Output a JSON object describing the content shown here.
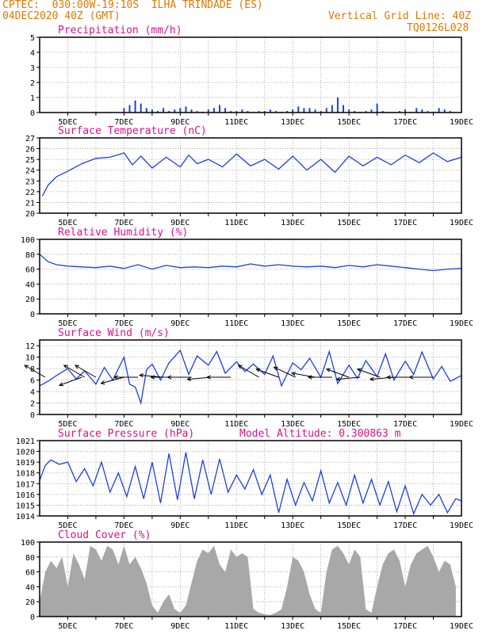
{
  "header": {
    "line1_left": "CPTEC:  030:00W-19:10S  ILHA TRINDADE (ES)",
    "line2_left": "04DEC2020 40Z (GMT)",
    "line1_right": "Vertical Grid Line: 40Z",
    "line2_right": "TQ0126L028"
  },
  "colors": {
    "header": "#e07800",
    "title": "#e0108a",
    "line": "#1f3fe0",
    "fill": "#a8a8a8"
  },
  "chart_data": [
    {
      "type": "bar",
      "title": "Precipitation (mm/h)",
      "x_tick_labels": [
        "5DEC",
        "7DEC",
        "9DEC",
        "11DEC",
        "13DEC",
        "15DEC",
        "17DEC",
        "19DEC"
      ],
      "y_ticks": [
        0,
        1,
        2,
        3,
        4,
        5
      ],
      "ylim": [
        0,
        5
      ],
      "grid": true,
      "x": [
        5,
        5.5,
        6,
        6.5,
        7,
        7.2,
        7.4,
        7.6,
        7.8,
        8,
        8.2,
        8.4,
        8.6,
        8.8,
        9,
        9.2,
        9.4,
        9.6,
        9.8,
        10,
        10.2,
        10.4,
        10.6,
        10.8,
        11,
        11.2,
        11.4,
        11.6,
        11.8,
        12,
        12.2,
        12.4,
        12.6,
        12.8,
        13,
        13.2,
        13.4,
        13.6,
        13.8,
        14,
        14.2,
        14.4,
        14.6,
        14.8,
        15,
        15.2,
        15.4,
        15.6,
        15.8,
        16,
        16.2,
        16.4,
        16.6,
        16.8,
        17,
        17.2,
        17.4,
        17.6,
        17.8,
        18,
        18.2,
        18.4,
        18.6
      ],
      "values": [
        0,
        0,
        0.05,
        0.05,
        0.3,
        0.5,
        0.8,
        0.6,
        0.3,
        0.2,
        0.1,
        0.3,
        0.1,
        0.2,
        0.3,
        0.4,
        0.2,
        0.1,
        0.05,
        0.2,
        0.3,
        0.5,
        0.3,
        0.1,
        0.1,
        0.2,
        0.1,
        0.05,
        0.1,
        0.1,
        0.2,
        0.1,
        0.05,
        0.1,
        0.2,
        0.4,
        0.3,
        0.3,
        0.2,
        0.1,
        0.3,
        0.5,
        1.0,
        0.5,
        0.2,
        0.1,
        0.05,
        0.1,
        0.2,
        0.6,
        0.1,
        0.05,
        0.05,
        0.1,
        0.2,
        0.05,
        0.3,
        0.2,
        0.1,
        0.05,
        0.3,
        0.2,
        0.1
      ]
    },
    {
      "type": "line",
      "title": "Surface Temperature (nC)",
      "x_tick_labels": [
        "5DEC",
        "7DEC",
        "9DEC",
        "11DEC",
        "13DEC",
        "15DEC",
        "17DEC",
        "19DEC"
      ],
      "y_ticks": [
        20,
        21,
        22,
        23,
        24,
        25,
        26,
        27
      ],
      "ylim": [
        20,
        27
      ],
      "grid": true,
      "x": [
        4.1,
        4.3,
        4.6,
        5,
        5.5,
        6,
        6.5,
        7,
        7.3,
        7.6,
        8,
        8.5,
        9,
        9.3,
        9.6,
        10,
        10.5,
        11,
        11.5,
        12,
        12.5,
        13,
        13.5,
        14,
        14.5,
        15,
        15.5,
        16,
        16.5,
        17,
        17.5,
        18,
        18.5,
        19
      ],
      "values": [
        21.6,
        22.6,
        23.4,
        23.9,
        24.6,
        25.1,
        25.2,
        25.6,
        24.5,
        25.3,
        24.2,
        25.2,
        24.3,
        25.4,
        24.6,
        25.0,
        24.3,
        25.5,
        24.4,
        25.0,
        24.1,
        25.3,
        24.0,
        25.0,
        23.8,
        25.3,
        24.4,
        25.2,
        24.5,
        25.4,
        24.7,
        25.6,
        24.8,
        25.2
      ]
    },
    {
      "type": "line",
      "title": "Relative Humidity (%)",
      "x_tick_labels": [
        "5DEC",
        "7DEC",
        "9DEC",
        "11DEC",
        "13DEC",
        "15DEC",
        "17DEC",
        "19DEC"
      ],
      "y_ticks": [
        0,
        20,
        40,
        60,
        80,
        100
      ],
      "ylim": [
        0,
        100
      ],
      "grid": true,
      "x": [
        4.0,
        4.3,
        4.6,
        5,
        5.5,
        6,
        6.5,
        7,
        7.5,
        8,
        8.5,
        9,
        9.5,
        10,
        10.5,
        11,
        11.5,
        12,
        12.5,
        13,
        13.5,
        14,
        14.5,
        15,
        15.5,
        16,
        16.5,
        17,
        17.5,
        18,
        18.5,
        19
      ],
      "values": [
        80,
        70,
        66,
        64,
        63,
        62,
        64,
        61,
        66,
        60,
        65,
        62,
        63,
        62,
        64,
        63,
        67,
        64,
        66,
        64,
        63,
        64,
        62,
        65,
        63,
        66,
        64,
        62,
        60,
        58,
        60,
        61
      ]
    },
    {
      "type": "line",
      "title": "Surface Wind (m/s)",
      "x_tick_labels": [
        "5DEC",
        "7DEC",
        "9DEC",
        "11DEC",
        "13DEC",
        "15DEC",
        "17DEC",
        "19DEC"
      ],
      "y_ticks": [
        0,
        2,
        4,
        6,
        8,
        10,
        12
      ],
      "ylim": [
        0,
        13
      ],
      "grid": true,
      "x": [
        4.0,
        4.3,
        4.6,
        5,
        5.3,
        5.6,
        6,
        6.3,
        6.6,
        7,
        7.2,
        7.4,
        7.6,
        7.8,
        8,
        8.3,
        8.6,
        9,
        9.3,
        9.6,
        10,
        10.3,
        10.6,
        11,
        11.3,
        11.6,
        12,
        12.3,
        12.6,
        13,
        13.3,
        13.6,
        14,
        14.3,
        14.6,
        15,
        15.3,
        15.6,
        16,
        16.3,
        16.6,
        17,
        17.3,
        17.6,
        18,
        18.3,
        18.6,
        19
      ],
      "values": [
        5.0,
        5.8,
        6.8,
        8.0,
        6.2,
        7.6,
        5.3,
        8.2,
        6.0,
        10.0,
        5.3,
        4.8,
        2.0,
        7.8,
        8.8,
        6.0,
        9.0,
        11.2,
        7.0,
        10.2,
        8.6,
        11.0,
        7.2,
        9.2,
        7.5,
        8.8,
        7.0,
        10.2,
        5.0,
        9.0,
        7.8,
        9.8,
        6.5,
        11.0,
        5.4,
        8.6,
        6.3,
        9.4,
        6.6,
        10.6,
        6.0,
        9.3,
        7.0,
        10.9,
        6.2,
        8.4,
        5.8,
        6.8
      ],
      "vectors": [
        {
          "x": 4.2,
          "dir_deg": 150
        },
        {
          "x": 5.6,
          "dir_deg": 150
        },
        {
          "x": 5.5,
          "dir_deg": 200
        },
        {
          "x": 6.0,
          "dir_deg": 150
        },
        {
          "x": 7.0,
          "dir_deg": 195
        },
        {
          "x": 7.5,
          "dir_deg": 180
        },
        {
          "x": 8.4,
          "dir_deg": 175
        },
        {
          "x": 8.8,
          "dir_deg": 180
        },
        {
          "x": 9.4,
          "dir_deg": 180
        },
        {
          "x": 10.1,
          "dir_deg": 185
        },
        {
          "x": 10.8,
          "dir_deg": 180
        },
        {
          "x": 11.8,
          "dir_deg": 150
        },
        {
          "x": 12.5,
          "dir_deg": 160
        },
        {
          "x": 13.1,
          "dir_deg": 155
        },
        {
          "x": 13.8,
          "dir_deg": 170
        },
        {
          "x": 14.4,
          "dir_deg": 180
        },
        {
          "x": 15.0,
          "dir_deg": 160
        },
        {
          "x": 15.4,
          "dir_deg": 185
        },
        {
          "x": 16.1,
          "dir_deg": 160
        },
        {
          "x": 16.6,
          "dir_deg": 185
        },
        {
          "x": 17.2,
          "dir_deg": 180
        },
        {
          "x": 18.0,
          "dir_deg": 180
        }
      ]
    },
    {
      "type": "line",
      "title": "Surface Pressure (hPa)",
      "subtitle": "Model Altitude: 0.300863 m",
      "x_tick_labels": [
        "5DEC",
        "7DEC",
        "9DEC",
        "11DEC",
        "13DEC",
        "15DEC",
        "17DEC",
        "19DEC"
      ],
      "y_ticks": [
        1014,
        1015,
        1016,
        1017,
        1018,
        1019,
        1020,
        1021
      ],
      "ylim": [
        1014,
        1021
      ],
      "grid": true,
      "x": [
        4.0,
        4.2,
        4.4,
        4.7,
        5.0,
        5.3,
        5.6,
        5.9,
        6.2,
        6.5,
        6.8,
        7.1,
        7.4,
        7.7,
        8.0,
        8.3,
        8.6,
        8.9,
        9.2,
        9.5,
        9.8,
        10.1,
        10.4,
        10.7,
        11.0,
        11.3,
        11.6,
        11.9,
        12.2,
        12.5,
        12.8,
        13.1,
        13.4,
        13.7,
        14.0,
        14.3,
        14.6,
        14.9,
        15.2,
        15.5,
        15.8,
        16.1,
        16.4,
        16.7,
        17.0,
        17.3,
        17.6,
        17.9,
        18.2,
        18.5,
        18.8,
        19.0
      ],
      "values": [
        1017.3,
        1018.7,
        1019.2,
        1018.8,
        1019.0,
        1017.2,
        1018.4,
        1016.8,
        1019.0,
        1016.2,
        1018.0,
        1015.8,
        1018.6,
        1015.6,
        1019.0,
        1015.2,
        1019.8,
        1015.5,
        1019.9,
        1015.6,
        1019.2,
        1016.0,
        1019.3,
        1016.2,
        1017.8,
        1016.5,
        1018.3,
        1016.0,
        1017.8,
        1014.3,
        1017.4,
        1015.0,
        1017.1,
        1015.4,
        1018.2,
        1015.2,
        1017.1,
        1015.0,
        1017.8,
        1015.2,
        1017.4,
        1015.0,
        1017.2,
        1014.4,
        1016.8,
        1014.2,
        1016.0,
        1015.0,
        1016.0,
        1014.3,
        1015.6,
        1015.4
      ]
    },
    {
      "type": "area",
      "title": "Cloud Cover (%)",
      "x_tick_labels": [
        "5DEC",
        "7DEC",
        "9DEC",
        "11DEC",
        "13DEC",
        "15DEC",
        "17DEC",
        "19DEC"
      ],
      "y_ticks": [
        0,
        20,
        40,
        60,
        80,
        100
      ],
      "ylim": [
        0,
        100
      ],
      "grid": true,
      "x": [
        4.0,
        4.2,
        4.4,
        4.6,
        4.8,
        5.0,
        5.2,
        5.4,
        5.6,
        5.8,
        6.0,
        6.2,
        6.4,
        6.6,
        6.8,
        7.0,
        7.2,
        7.4,
        7.6,
        7.8,
        8.0,
        8.2,
        8.4,
        8.6,
        8.8,
        9.0,
        9.2,
        9.4,
        9.6,
        9.8,
        10.0,
        10.2,
        10.4,
        10.6,
        10.8,
        11.0,
        11.2,
        11.4,
        11.6,
        11.8,
        12.0,
        12.2,
        12.4,
        12.6,
        12.8,
        13.0,
        13.2,
        13.4,
        13.6,
        13.8,
        14.0,
        14.2,
        14.4,
        14.6,
        14.8,
        15.0,
        15.2,
        15.4,
        15.6,
        15.8,
        16.0,
        16.2,
        16.4,
        16.6,
        16.8,
        17.0,
        17.2,
        17.4,
        17.6,
        17.8,
        18.0,
        18.2,
        18.4,
        18.6,
        18.8
      ],
      "values": [
        20,
        60,
        75,
        65,
        80,
        40,
        85,
        70,
        50,
        95,
        90,
        75,
        95,
        90,
        70,
        95,
        70,
        80,
        65,
        45,
        15,
        5,
        20,
        30,
        10,
        5,
        15,
        45,
        75,
        90,
        85,
        95,
        70,
        60,
        90,
        80,
        85,
        80,
        10,
        5,
        3,
        2,
        5,
        10,
        40,
        80,
        75,
        60,
        30,
        10,
        5,
        60,
        90,
        95,
        85,
        70,
        90,
        80,
        10,
        5,
        40,
        70,
        85,
        90,
        75,
        40,
        70,
        85,
        90,
        95,
        80,
        60,
        75,
        70,
        40
      ]
    }
  ]
}
